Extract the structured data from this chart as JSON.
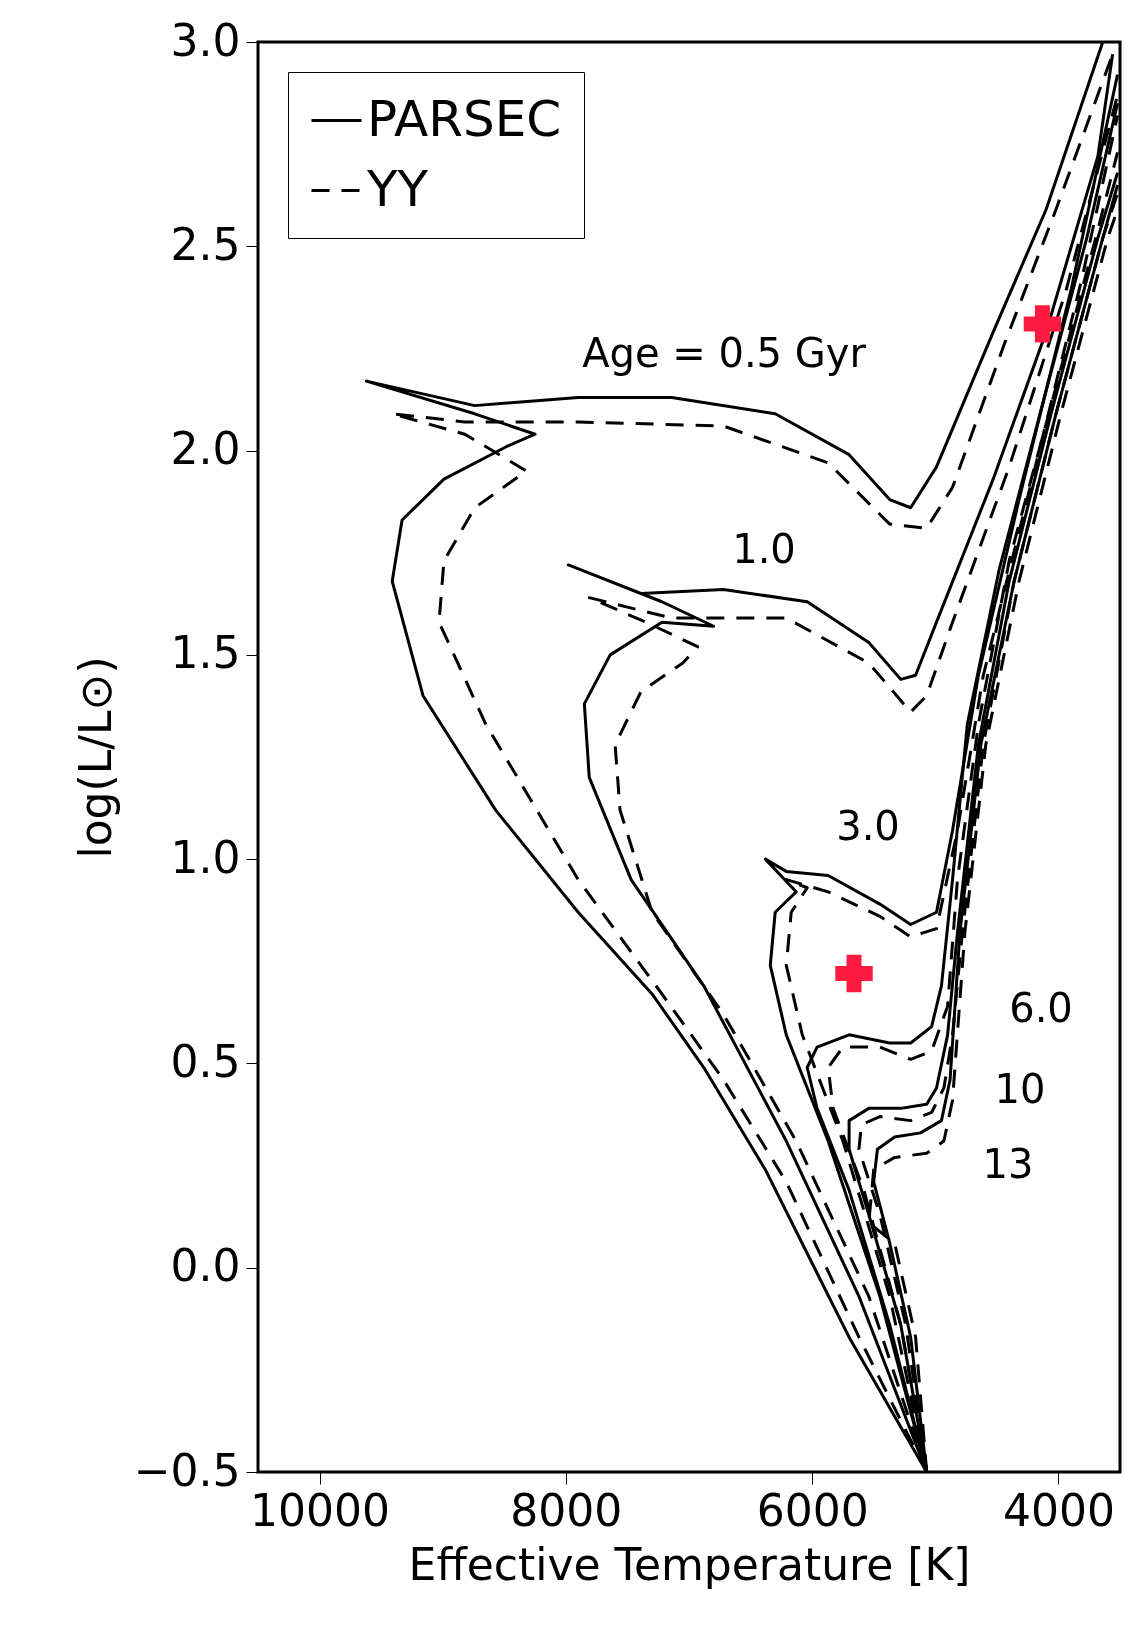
{
  "chart_data": {
    "type": "line",
    "xlabel": "Effective Temperature [K]",
    "ylabel": "log(L/L⊙)",
    "xlim": [
      10500,
      3500
    ],
    "xticks": [
      10000,
      8000,
      6000,
      4000
    ],
    "ylim": [
      -0.5,
      3.0
    ],
    "yticks": [
      {
        "value": -0.5,
        "label": "−0.5"
      },
      {
        "value": 0,
        "label": "0.0"
      },
      {
        "value": 0.5,
        "label": "0.5"
      },
      {
        "value": 1,
        "label": "1.0"
      },
      {
        "value": 1.5,
        "label": "1.5"
      },
      {
        "value": 2,
        "label": "2.0"
      },
      {
        "value": 2.5,
        "label": "2.5"
      },
      {
        "value": 3,
        "label": "3.0"
      }
    ],
    "grid": false,
    "legend": "top left",
    "annotations": [
      "Age = 0.5 Gyr",
      "1.0",
      "3.0",
      "6.0",
      "10",
      "13"
    ],
    "series": [
      {
        "name": "PARSEC",
        "color": "#000000",
        "line_style": "solid",
        "x": [
          5070,
          5700,
          6380,
          6880,
          7300,
          7900,
          8570,
          9160,
          9410,
          9330,
          8990,
          8480,
          8250,
          8740,
          9620,
          8740,
          7900,
          7140,
          6300,
          5700,
          5370,
          5200,
          4990,
          4530,
          4100,
          3640
        ],
        "values": [
          -0.5,
          -0.17,
          0.24,
          0.49,
          0.67,
          0.87,
          1.12,
          1.4,
          1.68,
          1.83,
          1.93,
          2.01,
          2.04,
          2.09,
          2.17,
          2.11,
          2.13,
          2.13,
          2.09,
          1.99,
          1.88,
          1.86,
          1.96,
          2.29,
          2.59,
          3.0
        ]
      },
      {
        "name": "YY",
        "color": "#000000",
        "line_style": "dashed",
        "x": [
          5070,
          5620,
          6210,
          6720,
          7220,
          7900,
          8650,
          9030,
          8990,
          8740,
          8320,
          8820,
          9410,
          8820,
          7900,
          6720,
          5870,
          5370,
          5070,
          4860,
          4440,
          4020,
          3560
        ],
        "values": [
          -0.5,
          -0.17,
          0.21,
          0.46,
          0.67,
          0.95,
          1.33,
          1.58,
          1.73,
          1.86,
          1.95,
          2.04,
          2.09,
          2.07,
          2.07,
          2.06,
          1.97,
          1.82,
          1.81,
          1.91,
          2.26,
          2.59,
          2.97
        ]
      },
      {
        "color": "#000000",
        "line_style": "solid",
        "x": [
          5070,
          5620,
          6210,
          6880,
          7470,
          7810,
          7850,
          7640,
          7220,
          6800,
          7220,
          7980,
          7390,
          6720,
          6040,
          5540,
          5280,
          5160,
          4990,
          4530,
          4100,
          3680,
          3560
        ],
        "values": [
          -0.5,
          -0.07,
          0.31,
          0.69,
          0.95,
          1.2,
          1.38,
          1.5,
          1.58,
          1.57,
          1.63,
          1.72,
          1.65,
          1.66,
          1.63,
          1.53,
          1.44,
          1.45,
          1.58,
          1.93,
          2.29,
          2.72,
          2.97
        ]
      },
      {
        "color": "#000000",
        "line_style": "dashed",
        "x": [
          5070,
          5540,
          6130,
          6720,
          7300,
          7560,
          7600,
          7390,
          7050,
          6930,
          7350,
          7810,
          7140,
          6210,
          5540,
          5200,
          5070,
          4860,
          4400,
          3940,
          3520
        ],
        "values": [
          -0.5,
          -0.07,
          0.31,
          0.62,
          0.87,
          1.12,
          1.28,
          1.41,
          1.48,
          1.52,
          1.58,
          1.64,
          1.59,
          1.59,
          1.48,
          1.36,
          1.4,
          1.58,
          1.96,
          2.39,
          2.87
        ]
      },
      {
        "color": "#000000",
        "line_style": "solid",
        "x": [
          5070,
          5450,
          5870,
          6210,
          6340,
          6300,
          6130,
          6380,
          6210,
          5870,
          5450,
          5200,
          4990,
          4860,
          4650,
          4320,
          3900,
          3520
        ],
        "values": [
          -0.5,
          -0.07,
          0.31,
          0.57,
          0.74,
          0.87,
          0.92,
          1.0,
          0.97,
          0.96,
          0.89,
          0.84,
          0.87,
          1.07,
          1.45,
          1.88,
          2.39,
          2.92
        ]
      },
      {
        "color": "#000000",
        "line_style": "dashed",
        "x": [
          5070,
          5370,
          5750,
          6080,
          6210,
          6170,
          6040,
          6210,
          5870,
          5450,
          5200,
          4990,
          4820,
          4610,
          4230,
          3810,
          3520
        ],
        "values": [
          -0.5,
          -0.07,
          0.31,
          0.57,
          0.74,
          0.87,
          0.93,
          0.95,
          0.92,
          0.86,
          0.81,
          0.83,
          1.07,
          1.45,
          1.91,
          2.42,
          2.82
        ]
      },
      {
        "color": "#000000",
        "line_style": "solid",
        "x": [
          5070,
          5370,
          5700,
          5960,
          6040,
          5960,
          5700,
          5370,
          5200,
          5030,
          4950,
          4860,
          4740,
          4480,
          4150,
          3770,
          3520
        ],
        "values": [
          -0.5,
          -0.14,
          0.19,
          0.39,
          0.49,
          0.54,
          0.57,
          0.55,
          0.55,
          0.59,
          0.69,
          0.95,
          1.33,
          1.71,
          2.09,
          2.52,
          2.85
        ]
      },
      {
        "color": "#000000",
        "line_style": "dashed",
        "x": [
          5070,
          5280,
          5580,
          5830,
          5870,
          5750,
          5450,
          5200,
          5030,
          4900,
          4820,
          4650,
          4400,
          4060,
          3680,
          3520
        ],
        "values": [
          -0.5,
          -0.14,
          0.19,
          0.39,
          0.49,
          0.54,
          0.54,
          0.51,
          0.53,
          0.64,
          0.95,
          1.33,
          1.73,
          2.11,
          2.54,
          2.73
        ]
      },
      {
        "color": "#000000",
        "line_style": "solid",
        "x": [
          5070,
          5280,
          5540,
          5700,
          5700,
          5540,
          5280,
          5070,
          4990,
          4900,
          4820,
          4650,
          4400,
          4060,
          3680,
          3520
        ],
        "values": [
          -0.5,
          -0.14,
          0.13,
          0.29,
          0.36,
          0.39,
          0.39,
          0.4,
          0.44,
          0.57,
          0.82,
          1.28,
          1.68,
          2.09,
          2.52,
          2.68
        ]
      },
      {
        "color": "#000000",
        "line_style": "dashed",
        "x": [
          5070,
          5240,
          5450,
          5620,
          5600,
          5450,
          5200,
          5030,
          4930,
          4860,
          4780,
          4610,
          4360,
          4020,
          3640,
          3520
        ],
        "values": [
          -0.5,
          -0.14,
          0.13,
          0.29,
          0.35,
          0.37,
          0.36,
          0.38,
          0.44,
          0.57,
          0.82,
          1.28,
          1.68,
          2.09,
          2.52,
          2.63
        ]
      },
      {
        "color": "#000000",
        "line_style": "solid",
        "x": [
          5070,
          5200,
          5370,
          5500,
          5470,
          5330,
          5120,
          4950,
          4880,
          4800,
          4630,
          4360,
          4020,
          3640,
          3520
        ],
        "values": [
          -0.5,
          -0.17,
          0.06,
          0.21,
          0.29,
          0.32,
          0.33,
          0.36,
          0.46,
          0.82,
          1.28,
          1.68,
          2.09,
          2.52,
          2.65
        ]
      },
      {
        "color": "#000000",
        "line_style": "dashed",
        "x": [
          5070,
          5160,
          5330,
          5540,
          5500,
          5330,
          5070,
          4930,
          4860,
          4760,
          4590,
          4320,
          3980,
          3600,
          3520
        ],
        "values": [
          -0.5,
          -0.17,
          0.06,
          0.11,
          0.24,
          0.27,
          0.28,
          0.31,
          0.41,
          0.82,
          1.28,
          1.68,
          2.09,
          2.52,
          2.59
        ]
      },
      {
        "type": "scatter",
        "color": "#ff1a40",
        "marker": "cross",
        "x": [
          4130,
          5660
        ],
        "values": [
          2.31,
          0.72
        ]
      }
    ]
  }
}
